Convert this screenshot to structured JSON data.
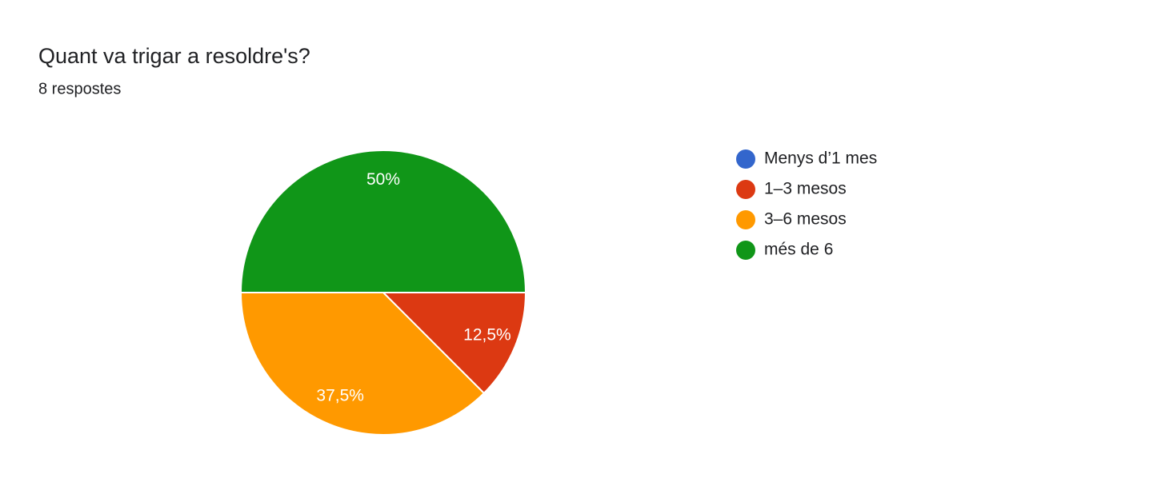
{
  "chart_data": {
    "type": "pie",
    "title": "Quant va trigar a resoldre's?",
    "subtitle": "8 respostes",
    "categories": [
      "Menys d’1 mes",
      "1–3 mesos",
      "3–6 mesos",
      "més de 6"
    ],
    "values": [
      0,
      12.5,
      37.5,
      50
    ],
    "value_labels": [
      null,
      "12,5%",
      "37,5%",
      "50%"
    ],
    "colors": [
      "#3366cc",
      "#dc3912",
      "#ff9900",
      "#109618"
    ],
    "legend": "right"
  }
}
